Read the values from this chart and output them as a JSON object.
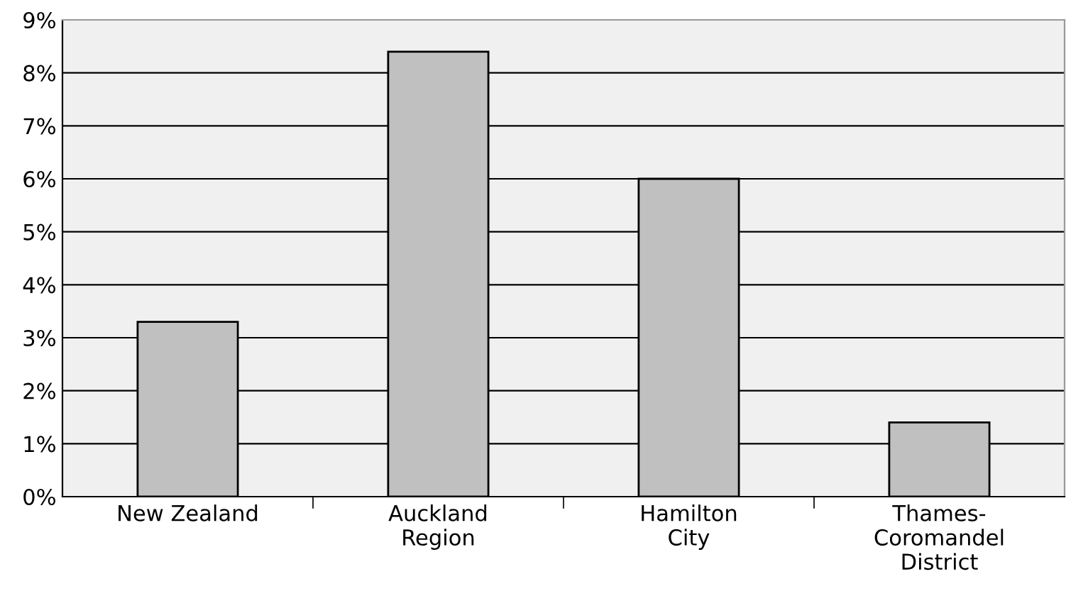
{
  "chart_data": {
    "type": "bar",
    "categories": [
      "New Zealand",
      "Auckland\nRegion",
      "Hamilton\nCity",
      "Thames-\nCoromandel\nDistrict"
    ],
    "values": [
      3.3,
      8.4,
      6.0,
      1.4
    ],
    "color": "#c0c0c0",
    "ylim": [
      0,
      9
    ],
    "yticks": [
      {
        "value": 0,
        "label": "0%"
      },
      {
        "value": 1,
        "label": "1%"
      },
      {
        "value": 2,
        "label": "2%"
      },
      {
        "value": 3,
        "label": "3%"
      },
      {
        "value": 4,
        "label": "4%"
      },
      {
        "value": 5,
        "label": "5%"
      },
      {
        "value": 6,
        "label": "6%"
      },
      {
        "value": 7,
        "label": "7%"
      },
      {
        "value": 8,
        "label": "8%"
      },
      {
        "value": 9,
        "label": "9%"
      }
    ],
    "grid": "y"
  }
}
